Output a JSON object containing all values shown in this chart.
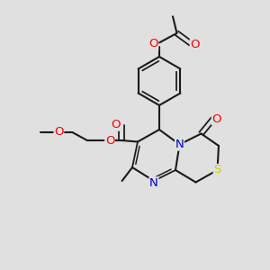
{
  "background_color": "#e0e0e0",
  "bond_color": "#1a1a1a",
  "bond_width": 1.5,
  "atom_colors": {
    "O": "#ff0000",
    "N": "#0000cc",
    "S": "#cccc00",
    "C": "#1a1a1a"
  },
  "font_size_atom": 8.5,
  "fig_width": 3.0,
  "fig_height": 3.0,
  "dpi": 100,
  "xlim": [
    0,
    10
  ],
  "ylim": [
    0,
    10
  ]
}
